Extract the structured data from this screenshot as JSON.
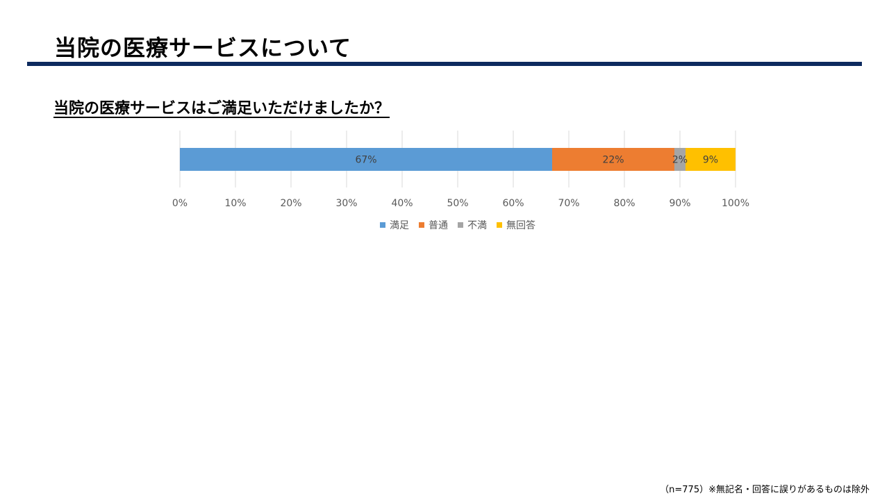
{
  "slide": {
    "title": "当院の医療サービスについて",
    "question": "当院の医療サービスはご満足いただけましたか？",
    "footnote": "（n=775）※無記名・回答に誤りがあるものは除外"
  },
  "chart_data": {
    "type": "bar",
    "orientation": "horizontal",
    "stacked": "100%",
    "categories": [
      ""
    ],
    "series": [
      {
        "name": "満足",
        "values": [
          67
        ],
        "label": "67%",
        "color": "#5b9bd5"
      },
      {
        "name": "普通",
        "values": [
          22
        ],
        "label": "22%",
        "color": "#ed7d31"
      },
      {
        "name": "不満",
        "values": [
          2
        ],
        "label": "2%",
        "color": "#a5a5a5"
      },
      {
        "name": "無回答",
        "values": [
          9
        ],
        "label": "9%",
        "color": "#ffc000"
      }
    ],
    "xlim": [
      0,
      100
    ],
    "xticks": [
      "0%",
      "10%",
      "20%",
      "30%",
      "40%",
      "50%",
      "60%",
      "70%",
      "80%",
      "90%",
      "100%"
    ],
    "grid": true,
    "legend": "bottom"
  }
}
